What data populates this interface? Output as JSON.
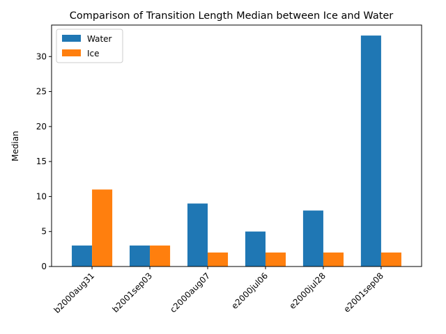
{
  "chart_data": {
    "type": "bar",
    "title": "Comparison of Transition Length Median between Ice and Water",
    "xlabel": "",
    "ylabel": "Median",
    "categories": [
      "b2000aug31",
      "b2001sep03",
      "c2000aug07",
      "e2000jul06",
      "e2000jul28",
      "e2001sep08"
    ],
    "series": [
      {
        "name": "Water",
        "color": "#1f77b4",
        "values": [
          3,
          3,
          9,
          5,
          8,
          33
        ]
      },
      {
        "name": "Ice",
        "color": "#ff7f0e",
        "values": [
          11,
          3,
          2,
          2,
          2,
          2
        ]
      }
    ],
    "ylim": [
      0,
      34.5
    ],
    "yticks": [
      0,
      5,
      10,
      15,
      20,
      25,
      30
    ],
    "grid": false,
    "legend_position": "top-left",
    "xtick_rotation": 45
  }
}
